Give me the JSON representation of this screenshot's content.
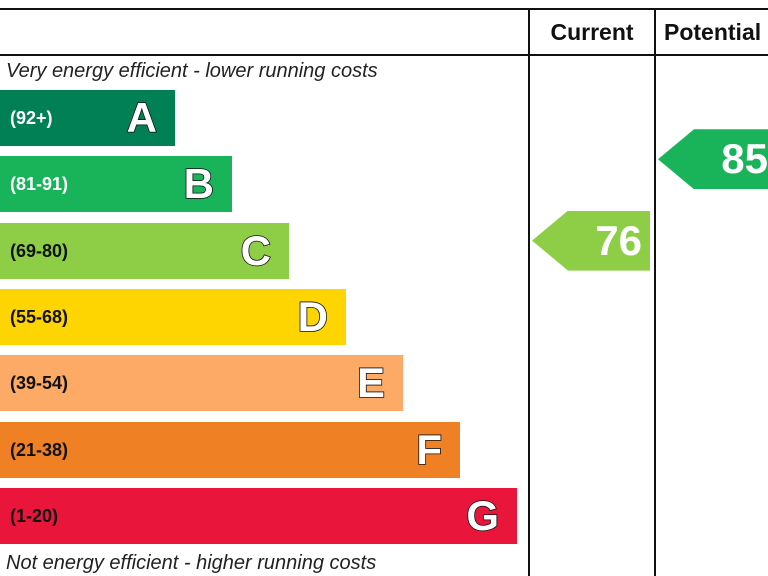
{
  "header": {
    "current_label": "Current",
    "potential_label": "Potential"
  },
  "captions": {
    "top": "Very energy efficient - lower running costs",
    "bottom": "Not energy efficient - higher running costs"
  },
  "chart_data": {
    "type": "bar",
    "categories": [
      "A",
      "B",
      "C",
      "D",
      "E",
      "F",
      "G"
    ],
    "bands": [
      {
        "letter": "A",
        "range": "(92+)",
        "color": "#008054",
        "text_color": "#ffffff"
      },
      {
        "letter": "B",
        "range": "(81-91)",
        "color": "#19b459",
        "text_color": "#ffffff"
      },
      {
        "letter": "C",
        "range": "(69-80)",
        "color": "#8dce46",
        "text_color": "#111111"
      },
      {
        "letter": "D",
        "range": "(55-68)",
        "color": "#ffd500",
        "text_color": "#111111"
      },
      {
        "letter": "E",
        "range": "(39-54)",
        "color": "#fcaa65",
        "text_color": "#111111"
      },
      {
        "letter": "F",
        "range": "(21-38)",
        "color": "#ef8023",
        "text_color": "#111111"
      },
      {
        "letter": "G",
        "range": "(1-20)",
        "color": "#e9153b",
        "text_color": "#111111"
      }
    ],
    "current": {
      "value": 76,
      "band": "C",
      "color": "#8dce46"
    },
    "potential": {
      "value": 85,
      "band": "B",
      "color": "#19b459"
    }
  }
}
